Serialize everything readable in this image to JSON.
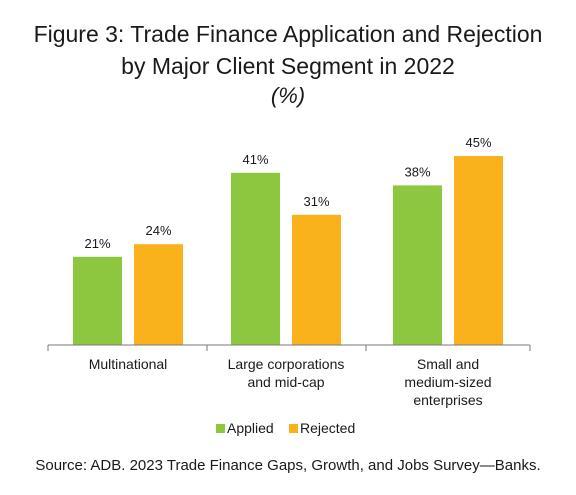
{
  "chart_data": {
    "type": "bar",
    "title_line1": "Figure 3: Trade Finance Application and Rejection",
    "title_line2": "by Major Client Segment in 2022",
    "subtitle": "(%)",
    "categories": [
      [
        "Multinational"
      ],
      [
        "Large corporations",
        "and mid-cap"
      ],
      [
        "Small and",
        "medium-sized",
        "enterprises"
      ]
    ],
    "series": [
      {
        "name": "Applied",
        "color": "#8dc63f",
        "values": [
          21,
          41,
          38
        ],
        "labels": [
          "21%",
          "41%",
          "38%"
        ]
      },
      {
        "name": "Rejected",
        "color": "#f9b21b",
        "values": [
          24,
          31,
          45
        ],
        "labels": [
          "24%",
          "31%",
          "45%"
        ]
      }
    ],
    "ylim": [
      0,
      50
    ],
    "grid": false,
    "legend_position": "bottom",
    "source": "Source: ADB. 2023 Trade Finance Gaps, Growth, and Jobs Survey—Banks."
  }
}
